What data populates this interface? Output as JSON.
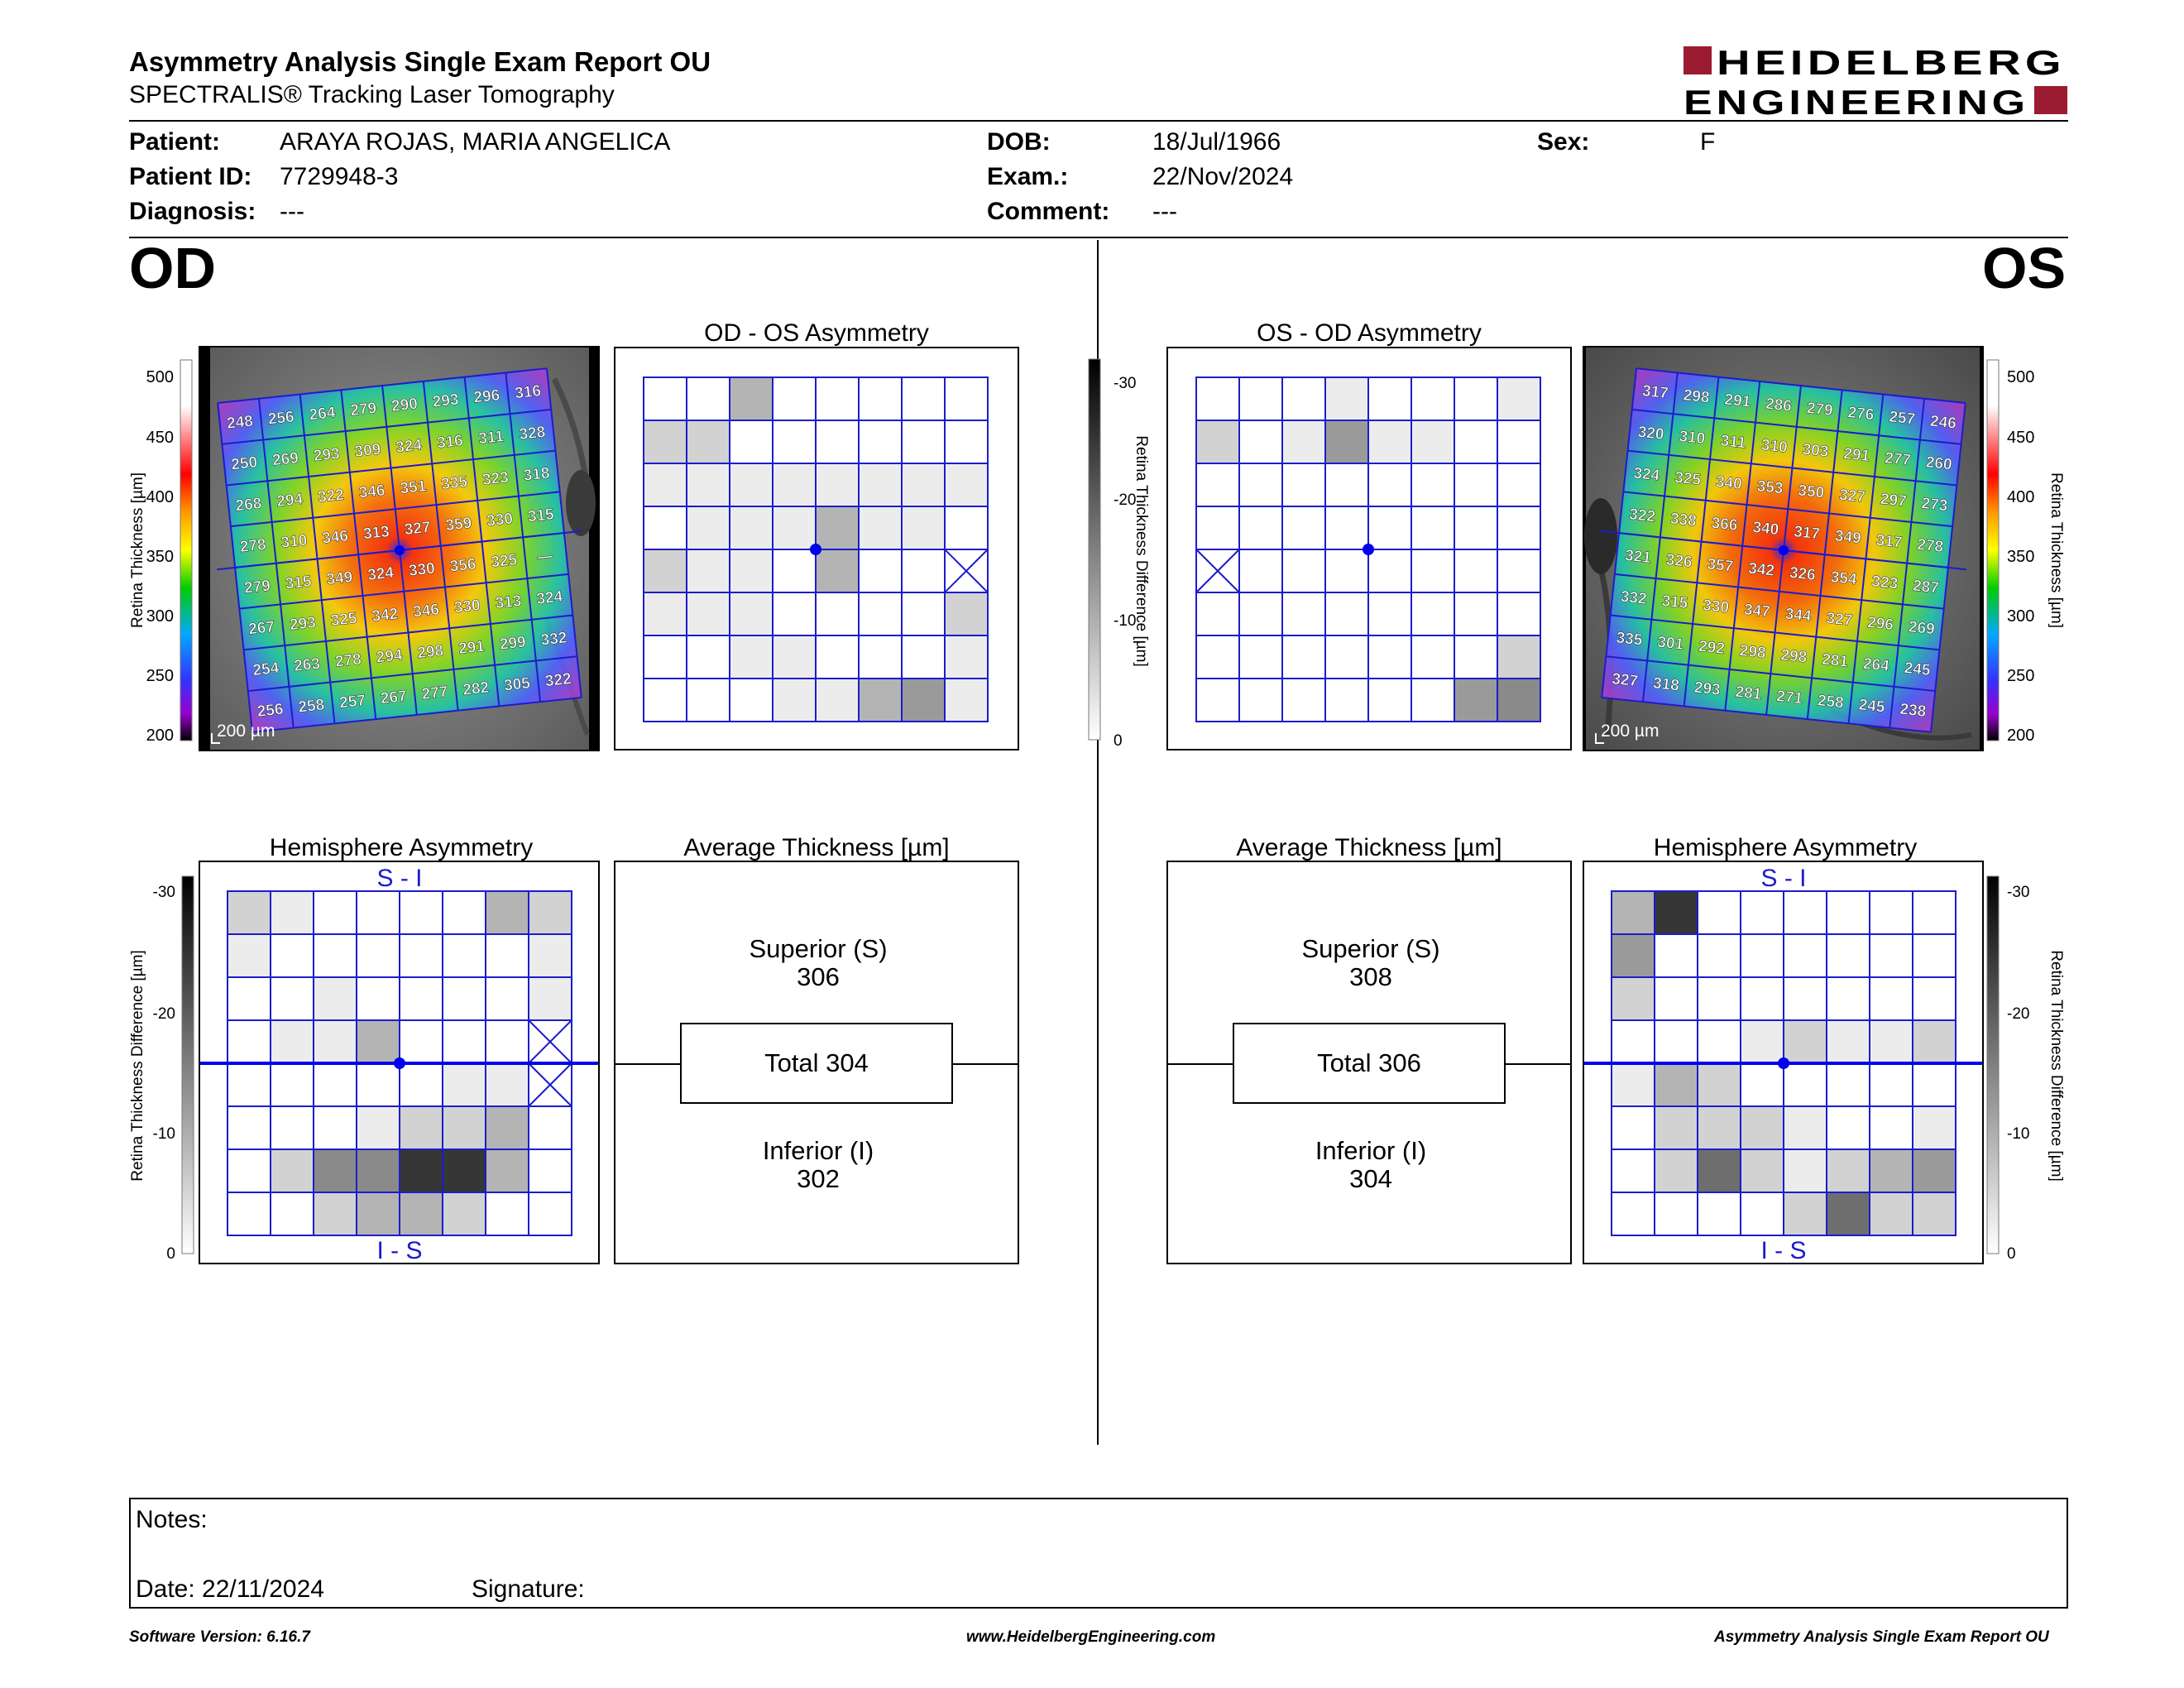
{
  "report": {
    "title": "Asymmetry Analysis Single Exam Report OU",
    "subtitle": "SPECTRALIS® Tracking Laser Tomography",
    "logo_line1": "HEIDELBERG",
    "logo_line2": "ENGINEERING",
    "brand_color": "#9b1b30"
  },
  "patient": {
    "patient_label": "Patient:",
    "patient_value": "ARAYA ROJAS, MARIA ANGELICA",
    "id_label": "Patient ID:",
    "id_value": "7729948-3",
    "diagnosis_label": "Diagnosis:",
    "diagnosis_value": "---",
    "dob_label": "DOB:",
    "dob_value": "18/Jul/1966",
    "exam_label": "Exam.:",
    "exam_value": "22/Nov/2024",
    "comment_label": "Comment:",
    "comment_value": "---",
    "sex_label": "Sex:",
    "sex_value": "F"
  },
  "od": {
    "eye_label": "OD",
    "thickness_scale": {
      "axis_label": "Retina  Thickness [µm]",
      "ticks": [
        "500",
        "450",
        "400",
        "350",
        "300",
        "250",
        "200"
      ]
    },
    "scale_bar": "200 µm",
    "thickness_grid": [
      [
        "248",
        "256",
        "264",
        "279",
        "290",
        "293",
        "296",
        "316"
      ],
      [
        "250",
        "269",
        "293",
        "309",
        "324",
        "316",
        "311",
        "328"
      ],
      [
        "268",
        "294",
        "322",
        "346",
        "351",
        "335",
        "323",
        "318"
      ],
      [
        "278",
        "310",
        "346",
        "313",
        "327",
        "359",
        "330",
        "315"
      ],
      [
        "279",
        "315",
        "349",
        "324",
        "330",
        "356",
        "325",
        "—"
      ],
      [
        "267",
        "293",
        "325",
        "342",
        "346",
        "330",
        "313",
        "324"
      ],
      [
        "254",
        "263",
        "278",
        "294",
        "298",
        "291",
        "299",
        "332"
      ],
      [
        "256",
        "258",
        "257",
        "267",
        "277",
        "282",
        "305",
        "322"
      ]
    ],
    "asymmetry_title": "OD - OS Asymmetry",
    "asymmetry_levels": [
      [
        0,
        0,
        3,
        0,
        0,
        0,
        0,
        0
      ],
      [
        2,
        2,
        0,
        0,
        0,
        0,
        0,
        0
      ],
      [
        1,
        1,
        1,
        1,
        1,
        1,
        1,
        1
      ],
      [
        0,
        1,
        1,
        1,
        3,
        1,
        1,
        0
      ],
      [
        2,
        1,
        1,
        0,
        3,
        0,
        0,
        -1
      ],
      [
        1,
        1,
        1,
        0,
        0,
        0,
        0,
        2
      ],
      [
        0,
        0,
        1,
        1,
        0,
        0,
        0,
        1
      ],
      [
        0,
        0,
        0,
        1,
        1,
        3,
        4,
        1
      ]
    ],
    "hemisphere_title": "Hemisphere Asymmetry",
    "hemisphere_top_label": "S - I",
    "hemisphere_bottom_label": "I - S",
    "hemisphere_levels": [
      [
        2,
        1,
        0,
        0,
        0,
        0,
        3,
        2
      ],
      [
        1,
        0,
        0,
        0,
        0,
        0,
        0,
        1
      ],
      [
        0,
        0,
        1,
        0,
        0,
        0,
        0,
        1
      ],
      [
        0,
        1,
        1,
        3,
        0,
        0,
        0,
        -1
      ],
      [
        0,
        0,
        0,
        0,
        0,
        1,
        1,
        -1
      ],
      [
        0,
        0,
        0,
        1,
        2,
        2,
        3,
        0
      ],
      [
        0,
        2,
        5,
        5,
        8,
        8,
        3,
        0
      ],
      [
        0,
        0,
        2,
        3,
        3,
        2,
        0,
        0
      ]
    ],
    "diff_scale": {
      "axis_label": "Retina Thickness Difference [µm]",
      "ticks": [
        "-30",
        "-20",
        "-10",
        "0"
      ]
    },
    "average": {
      "title": "Average Thickness [µm]",
      "superior_label": "Superior (S)",
      "superior_value": "306",
      "total_label": "Total 304",
      "inferior_label": "Inferior (I)",
      "inferior_value": "302"
    }
  },
  "os": {
    "eye_label": "OS",
    "thickness_scale": {
      "axis_label": "Retina  Thickness [µm]",
      "ticks": [
        "500",
        "450",
        "400",
        "350",
        "300",
        "250",
        "200"
      ]
    },
    "scale_bar": "200 µm",
    "thickness_grid": [
      [
        "317",
        "298",
        "291",
        "286",
        "279",
        "276",
        "257",
        "246"
      ],
      [
        "320",
        "310",
        "311",
        "310",
        "303",
        "291",
        "277",
        "260"
      ],
      [
        "324",
        "325",
        "340",
        "353",
        "350",
        "327",
        "297",
        "273"
      ],
      [
        "322",
        "338",
        "366",
        "340",
        "317",
        "349",
        "317",
        "278"
      ],
      [
        "321",
        "326",
        "357",
        "342",
        "326",
        "354",
        "323",
        "287"
      ],
      [
        "332",
        "315",
        "330",
        "347",
        "344",
        "327",
        "296",
        "269"
      ],
      [
        "335",
        "301",
        "292",
        "298",
        "298",
        "281",
        "264",
        "245"
      ],
      [
        "327",
        "318",
        "293",
        "281",
        "271",
        "258",
        "245",
        "238"
      ]
    ],
    "asymmetry_title": "OS - OD Asymmetry",
    "asymmetry_levels": [
      [
        0,
        0,
        0,
        1,
        0,
        0,
        0,
        1
      ],
      [
        2,
        0,
        1,
        4,
        1,
        1,
        0,
        0
      ],
      [
        0,
        0,
        0,
        0,
        0,
        0,
        0,
        0
      ],
      [
        0,
        0,
        0,
        0,
        0,
        0,
        0,
        0
      ],
      [
        -1,
        0,
        0,
        0,
        0,
        0,
        0,
        0
      ],
      [
        0,
        0,
        0,
        0,
        0,
        0,
        0,
        0
      ],
      [
        0,
        0,
        0,
        0,
        0,
        0,
        0,
        2
      ],
      [
        0,
        0,
        0,
        0,
        0,
        0,
        4,
        5
      ]
    ],
    "hemisphere_title": "Hemisphere Asymmetry",
    "hemisphere_top_label": "S - I",
    "hemisphere_bottom_label": "I - S",
    "hemisphere_levels": [
      [
        3,
        8,
        0,
        0,
        0,
        0,
        0,
        0
      ],
      [
        4,
        0,
        0,
        0,
        0,
        0,
        0,
        0
      ],
      [
        2,
        0,
        0,
        0,
        0,
        0,
        0,
        0
      ],
      [
        0,
        0,
        0,
        1,
        2,
        1,
        1,
        2
      ],
      [
        1,
        3,
        2,
        0,
        0,
        0,
        0,
        0
      ],
      [
        0,
        2,
        2,
        2,
        1,
        0,
        0,
        1
      ],
      [
        0,
        2,
        6,
        2,
        1,
        2,
        3,
        4
      ],
      [
        0,
        0,
        0,
        0,
        2,
        6,
        2,
        2
      ]
    ],
    "diff_scale": {
      "axis_label": "Retina Thickness Difference [µm]",
      "ticks": [
        "-30",
        "-20",
        "-10",
        "0"
      ]
    },
    "average": {
      "title": "Average Thickness [µm]",
      "superior_label": "Superior (S)",
      "superior_value": "308",
      "total_label": "Total 306",
      "inferior_label": "Inferior (I)",
      "inferior_value": "304"
    }
  },
  "notes": {
    "notes_label": "Notes:",
    "date_label": "Date: 22/11/2024",
    "signature_label": "Signature:"
  },
  "footer": {
    "software_version": "Software Version: 6.16.7",
    "website": "www.HeidelbergEngineering.com",
    "report_name": "Asymmetry Analysis Single Exam Report OU"
  },
  "colors": {
    "grid_blue": "#1c1ccc",
    "marker_blue": "#0000ee"
  }
}
